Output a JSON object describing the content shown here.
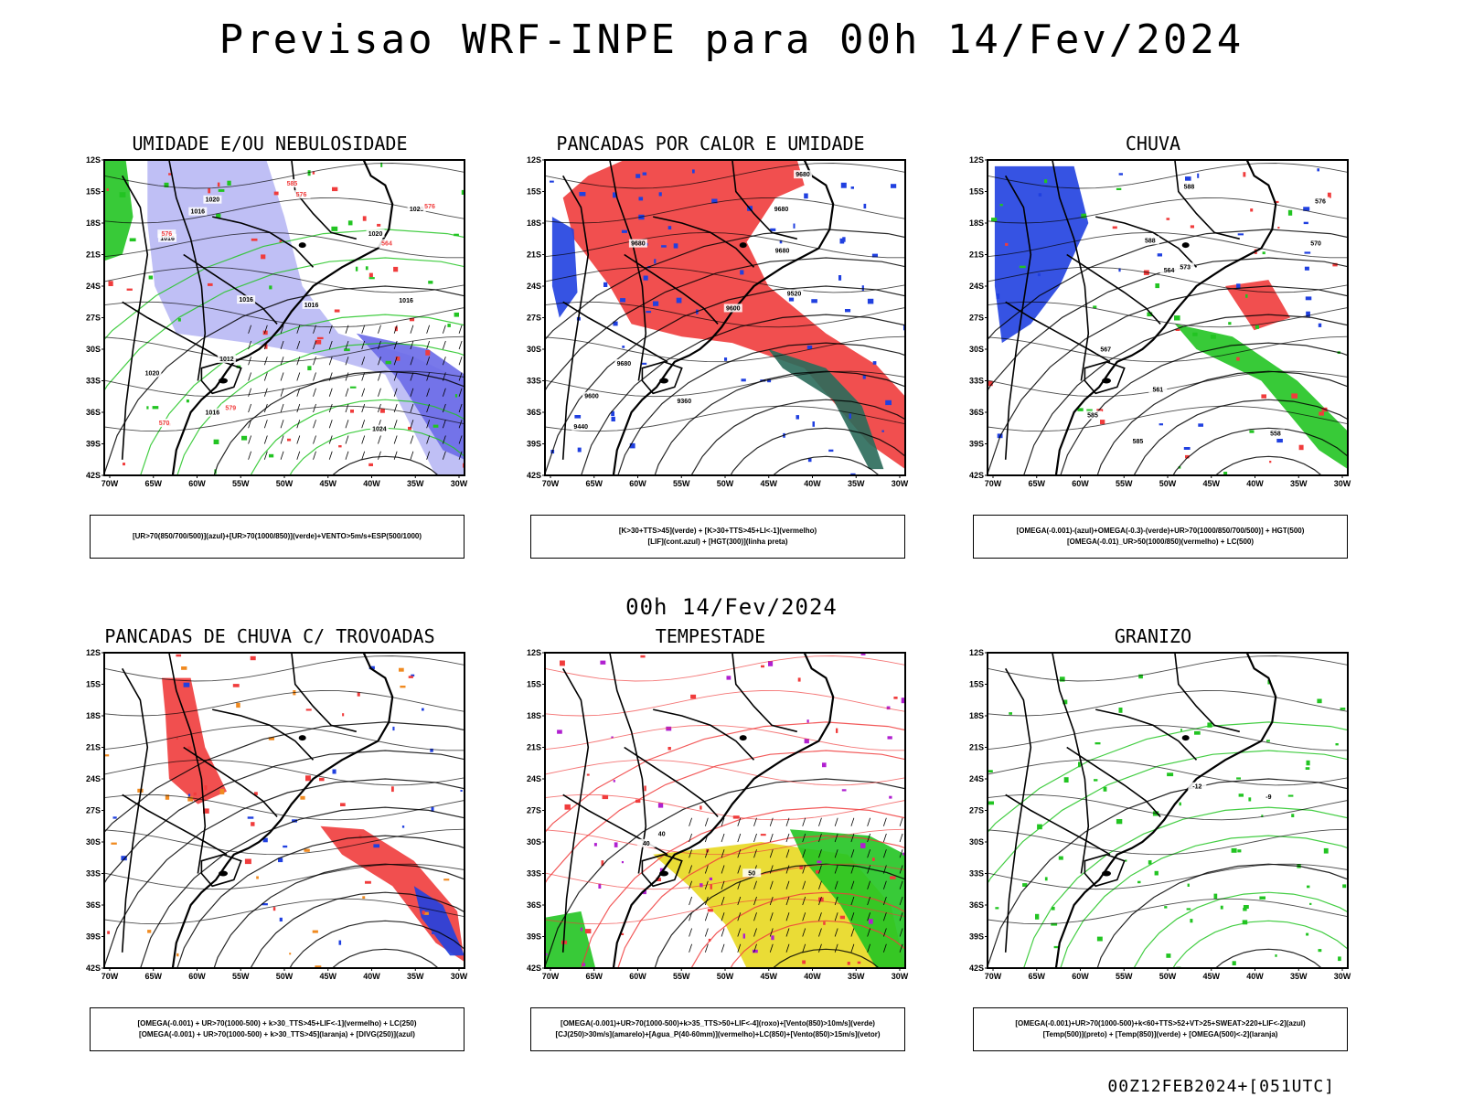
{
  "main_title": "Previsao WRF-INPE  para 00h 14/Fev/2024",
  "mid_title": "00h 14/Fev/2024",
  "footer": "00Z12FEB2024+[051UTC]",
  "lat_labels": [
    "12S",
    "15S",
    "18S",
    "21S",
    "24S",
    "27S",
    "30S",
    "33S",
    "36S",
    "39S",
    "42S"
  ],
  "lon_labels": [
    "70W",
    "65W",
    "60W",
    "55W",
    "50W",
    "45W",
    "40W",
    "35W",
    "30W"
  ],
  "colors": {
    "red": "#f03c3c",
    "green": "#22c422",
    "blue": "#2040e0",
    "lavender": "#b8b8f4",
    "yellow": "#e8d820",
    "orange": "#f08a20",
    "purple": "#b020d0"
  },
  "panels": [
    {
      "title": "UMIDADE E/OU NEBULOSIDADE",
      "caption": [
        "[UR>70(850/700/500)](azul)+[UR>70(1000/850)](verde)+VENTO>5m/s+ESP(500/1000)"
      ],
      "contour_labels": [
        "1016",
        "1016",
        "1016",
        "1024",
        "1020",
        "1016",
        "1016",
        "1016",
        "1012",
        "1020",
        "1020",
        "1020",
        "576",
        "576",
        "579",
        "576",
        "570",
        "564",
        "585"
      ]
    },
    {
      "title": "PANCADAS POR CALOR E UMIDADE",
      "caption": [
        "[K>30+TTS>45](verde)  +  [K>30+TTS>45+LI<-1](vermelho)",
        "[LIF](cont.azul)  +  [HGT(300)](linha preta)"
      ],
      "contour_labels": [
        "9680",
        "9680",
        "9680",
        "9680",
        "9600",
        "9520",
        "9440",
        "9360",
        "9600",
        "9680"
      ]
    },
    {
      "title": "CHUVA",
      "caption": [
        "[OMEGA(-0.001)-(azul)+OMEGA(-0.3)-(verde)+UR>70(1000/850/700/500)]  +  HGT(500)",
        "[OMEGA(-0.01)_UR>50(1000/850)(vermelho)  +  LC(500)"
      ],
      "contour_labels": [
        "585",
        "588",
        "576",
        "573",
        "570",
        "567",
        "564",
        "561",
        "558",
        "588",
        "585"
      ]
    },
    {
      "title": "PANCADAS DE CHUVA C/ TROVOADAS",
      "caption": [
        "[OMEGA(-0.001)  +  UR>70(1000-500)  +  k>30_TTS>45+LIF<-1](vermelho)  +  LC(250)",
        "[OMEGA(-0.001)  +  UR>70(1000-500)  +  k>30_TTS>45](laranja)  +  [DIVG(250)](azul)"
      ],
      "contour_labels": []
    },
    {
      "title": "TEMPESTADE",
      "caption": [
        "[OMEGA(-0.001)+UR>70(1000-500)+k>35_TTS>50+LIF<-4](roxo)+[Vento(850)>10m/s](verde)",
        "[CJ(250)>30m/s](amarelo)+[Agua_P(40-60mm)](vermelho)+LC(850)+[Vento(850)>15m/s](vetor)"
      ],
      "contour_labels": [
        "40",
        "40",
        "50"
      ]
    },
    {
      "title": "GRANIZO",
      "caption": [
        "[OMEGA(-0.001)+UR>70(1000-500)+k<60+TTS>52+VT>25+SWEAT>220+LIF<-2](azul)",
        "[Temp(500)](preto)  +  [Temp(850)](verde)  +  [OMEGA(500)<-2](laranja)"
      ],
      "contour_labels": [
        "-9",
        "-12"
      ]
    }
  ]
}
